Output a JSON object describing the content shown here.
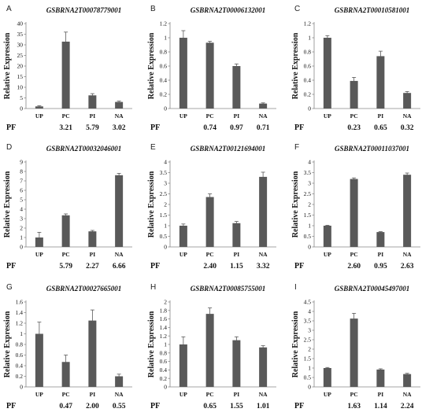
{
  "figure": {
    "pf_label": "PF",
    "ylabel": "Relative Expression"
  },
  "chart_data": [
    {
      "type": "bar",
      "letter": "A",
      "title": "GSBRNA2T00078779001",
      "categories": [
        "UP",
        "PC",
        "PI",
        "NA"
      ],
      "values": [
        1.0,
        31.5,
        6.2,
        3.1
      ],
      "errors": [
        0.3,
        4.5,
        0.8,
        0.4
      ],
      "ylim": [
        0,
        40
      ],
      "yticks": [
        "0",
        "5",
        "10",
        "15",
        "20",
        "25",
        "30",
        "35",
        "40"
      ],
      "pf": [
        "",
        "3.21",
        "5.79",
        "3.02"
      ],
      "ylabel": "Relative Expression"
    },
    {
      "type": "bar",
      "letter": "B",
      "title": "GSBRNA2T00006132001",
      "categories": [
        "UP",
        "PC",
        "PI",
        "NA"
      ],
      "values": [
        1.0,
        0.93,
        0.6,
        0.07
      ],
      "errors": [
        0.1,
        0.02,
        0.03,
        0.01
      ],
      "ylim": [
        0,
        1.2
      ],
      "yticks": [
        "0",
        "0.2",
        "0.4",
        "0.6",
        "0.8",
        "1",
        "1.2"
      ],
      "pf": [
        "",
        "0.74",
        "0.97",
        "0.71"
      ],
      "ylabel": "Relative Expression"
    },
    {
      "type": "bar",
      "letter": "C",
      "title": "GSBRNA2T00010581001",
      "categories": [
        "UP",
        "PC",
        "PI",
        "NA"
      ],
      "values": [
        1.0,
        0.39,
        0.74,
        0.22
      ],
      "errors": [
        0.03,
        0.05,
        0.07,
        0.02
      ],
      "ylim": [
        0,
        1.2
      ],
      "yticks": [
        "0",
        "0.2",
        "0.4",
        "0.6",
        "0.8",
        "1",
        "1.2"
      ],
      "pf": [
        "",
        "0.23",
        "0.65",
        "0.32"
      ],
      "ylabel": "Relative Expression"
    },
    {
      "type": "bar",
      "letter": "D",
      "title": "GSBRNA2T00032046001",
      "categories": [
        "UP",
        "PC",
        "PI",
        "NA"
      ],
      "values": [
        1.0,
        3.35,
        1.65,
        7.6
      ],
      "errors": [
        0.55,
        0.15,
        0.1,
        0.2
      ],
      "ylim": [
        0,
        9
      ],
      "yticks": [
        "0",
        "1",
        "2",
        "3",
        "4",
        "5",
        "6",
        "7",
        "8",
        "9"
      ],
      "pf": [
        "",
        "5.79",
        "2.27",
        "6.66"
      ],
      "ylabel": "Relative Expression"
    },
    {
      "type": "bar",
      "letter": "E",
      "title": "GSBRNA2T00121694001",
      "categories": [
        "UP",
        "PC",
        "PI",
        "NA"
      ],
      "values": [
        1.0,
        2.35,
        1.12,
        3.3
      ],
      "errors": [
        0.08,
        0.15,
        0.08,
        0.22
      ],
      "ylim": [
        0,
        4
      ],
      "yticks": [
        "0",
        "0.5",
        "1",
        "1.5",
        "2",
        "2.5",
        "3",
        "3.5",
        "4"
      ],
      "pf": [
        "",
        "2.40",
        "1.15",
        "3.32"
      ],
      "ylabel": "Relative Expression"
    },
    {
      "type": "bar",
      "letter": "F",
      "title": "GSBRNA2T00011037001",
      "categories": [
        "UP",
        "PC",
        "PI",
        "NA"
      ],
      "values": [
        1.0,
        3.2,
        0.7,
        3.4
      ],
      "errors": [
        0.02,
        0.05,
        0.02,
        0.08
      ],
      "ylim": [
        0,
        4
      ],
      "yticks": [
        "0",
        "0.5",
        "1",
        "1.5",
        "2",
        "2.5",
        "3",
        "3.5",
        "4"
      ],
      "pf": [
        "",
        "2.60",
        "0.95",
        "2.63"
      ],
      "ylabel": "Relative Expression"
    },
    {
      "type": "bar",
      "letter": "G",
      "title": "GSBRNA2T00027665001",
      "categories": [
        "UP",
        "PC",
        "PI",
        "NA"
      ],
      "values": [
        1.0,
        0.47,
        1.25,
        0.2
      ],
      "errors": [
        0.22,
        0.13,
        0.2,
        0.04
      ],
      "ylim": [
        0,
        1.6
      ],
      "yticks": [
        "0",
        "0.2",
        "0.4",
        "0.6",
        "0.8",
        "1",
        "1.2",
        "1.4",
        "1.6"
      ],
      "pf": [
        "",
        "0.47",
        "2.00",
        "0.55"
      ],
      "ylabel": "Relative Expression"
    },
    {
      "type": "bar",
      "letter": "H",
      "title": "GSBRNA2T00085755001",
      "categories": [
        "UP",
        "PC",
        "PI",
        "NA"
      ],
      "values": [
        1.0,
        1.72,
        1.1,
        0.93
      ],
      "errors": [
        0.18,
        0.14,
        0.08,
        0.04
      ],
      "ylim": [
        0,
        2
      ],
      "yticks": [
        "0",
        "0.2",
        "0.4",
        "0.6",
        "0.8",
        "1",
        "1.2",
        "1.4",
        "1.6",
        "1.8",
        "2"
      ],
      "pf": [
        "",
        "0.65",
        "1.55",
        "1.01"
      ],
      "ylabel": "Relative Expression"
    },
    {
      "type": "bar",
      "letter": "I",
      "title": "GSBRNA2T00045497001",
      "categories": [
        "UP",
        "PC",
        "PI",
        "NA"
      ],
      "values": [
        1.0,
        3.62,
        0.92,
        0.68
      ],
      "errors": [
        0.03,
        0.28,
        0.04,
        0.04
      ],
      "ylim": [
        0,
        4.5
      ],
      "yticks": [
        "0",
        "0.5",
        "1",
        "1.5",
        "2",
        "2.5",
        "3",
        "3.5",
        "4",
        "4.5"
      ],
      "pf": [
        "",
        "1.63",
        "1.14",
        "2.24"
      ],
      "ylabel": "Relative Expression"
    }
  ]
}
